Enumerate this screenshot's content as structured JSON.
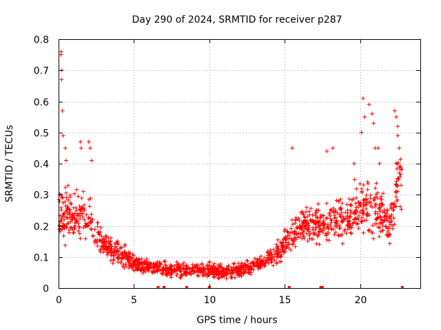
{
  "chart_data": {
    "type": "scatter",
    "title": "Day 290 of 2024, SRMTID for receiver p287",
    "xlabel": "GPS time / hours",
    "ylabel": "SRMTID / TECUs",
    "xlim": [
      0,
      24
    ],
    "ylim": [
      0,
      0.8
    ],
    "x_ticks": [
      0,
      5,
      10,
      15,
      20
    ],
    "x_tick_labels": [
      "0",
      "5",
      "10",
      "15",
      "20"
    ],
    "y_ticks": [
      0,
      0.1,
      0.2,
      0.3,
      0.4,
      0.5,
      0.6,
      0.7,
      0.8
    ],
    "y_tick_labels": [
      "0",
      "0.1",
      "0.2",
      "0.3",
      "0.4",
      "0.5",
      "0.6",
      "0.7",
      "0.8"
    ],
    "grid": true,
    "marker": "plus",
    "color": "#ff0000",
    "envelope": {
      "description": "approximate trend of the point cloud (hour, median, spread)",
      "points": [
        [
          0.0,
          0.22,
          0.1
        ],
        [
          0.5,
          0.24,
          0.12
        ],
        [
          1.0,
          0.22,
          0.11
        ],
        [
          1.5,
          0.23,
          0.11
        ],
        [
          2.0,
          0.24,
          0.12
        ],
        [
          2.5,
          0.17,
          0.08
        ],
        [
          3.0,
          0.14,
          0.06
        ],
        [
          3.5,
          0.12,
          0.05
        ],
        [
          4.0,
          0.11,
          0.05
        ],
        [
          4.5,
          0.1,
          0.05
        ],
        [
          5.0,
          0.08,
          0.04
        ],
        [
          6.0,
          0.07,
          0.03
        ],
        [
          7.0,
          0.06,
          0.03
        ],
        [
          8.0,
          0.06,
          0.03
        ],
        [
          9.0,
          0.06,
          0.03
        ],
        [
          10.0,
          0.06,
          0.03
        ],
        [
          11.0,
          0.05,
          0.03
        ],
        [
          12.0,
          0.06,
          0.03
        ],
        [
          13.0,
          0.07,
          0.03
        ],
        [
          14.0,
          0.1,
          0.04
        ],
        [
          14.7,
          0.12,
          0.05
        ],
        [
          15.5,
          0.18,
          0.07
        ],
        [
          16.0,
          0.2,
          0.08
        ],
        [
          17.0,
          0.2,
          0.09
        ],
        [
          18.0,
          0.22,
          0.1
        ],
        [
          19.0,
          0.22,
          0.1
        ],
        [
          20.0,
          0.26,
          0.12
        ],
        [
          21.0,
          0.26,
          0.12
        ],
        [
          22.0,
          0.2,
          0.08
        ],
        [
          22.5,
          0.34,
          0.12
        ]
      ]
    },
    "outliers": [
      [
        0.15,
        0.75
      ],
      [
        0.18,
        0.76
      ],
      [
        0.22,
        0.7
      ],
      [
        0.2,
        0.67
      ],
      [
        0.25,
        0.57
      ],
      [
        0.3,
        0.49
      ],
      [
        0.45,
        0.45
      ],
      [
        0.5,
        0.41
      ],
      [
        1.45,
        0.47
      ],
      [
        1.5,
        0.45
      ],
      [
        2.0,
        0.47
      ],
      [
        2.1,
        0.45
      ],
      [
        2.2,
        0.41
      ],
      [
        15.5,
        0.45
      ],
      [
        17.8,
        0.44
      ],
      [
        18.2,
        0.45
      ],
      [
        19.6,
        0.4
      ],
      [
        20.1,
        0.5
      ],
      [
        20.3,
        0.55
      ],
      [
        20.2,
        0.61
      ],
      [
        20.6,
        0.59
      ],
      [
        20.8,
        0.56
      ],
      [
        20.9,
        0.53
      ],
      [
        21.0,
        0.45
      ],
      [
        21.2,
        0.45
      ],
      [
        21.3,
        0.4
      ],
      [
        22.3,
        0.57
      ],
      [
        22.4,
        0.55
      ],
      [
        22.5,
        0.52
      ],
      [
        22.5,
        0.49
      ],
      [
        22.6,
        0.45
      ]
    ],
    "zero_markers": [
      6.6,
      7.0,
      8.5,
      10.0,
      15.3,
      17.4,
      17.5,
      22.8
    ]
  }
}
